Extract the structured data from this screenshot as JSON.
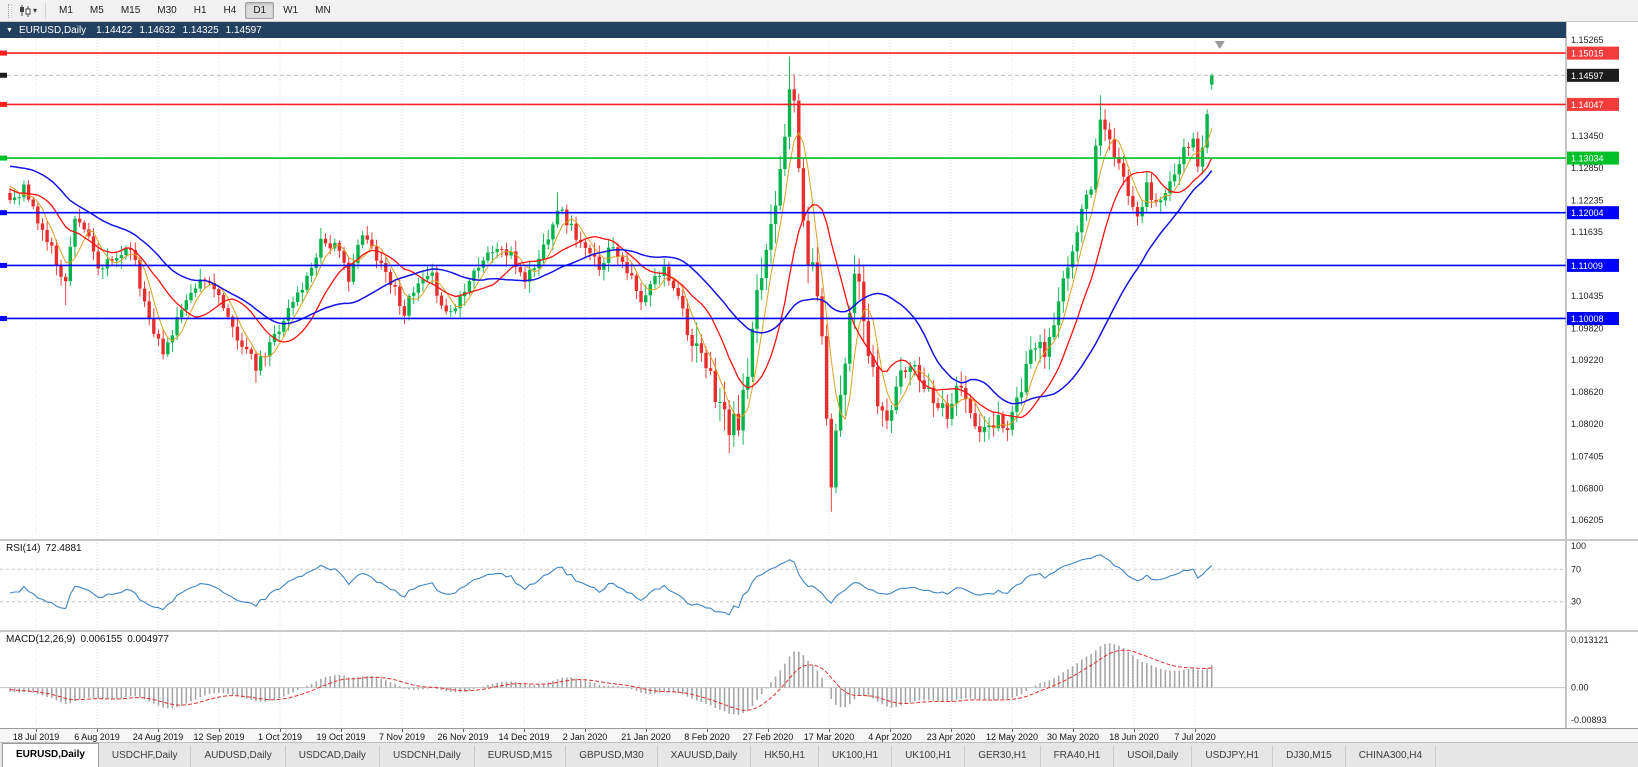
{
  "toolbar": {
    "chart_menu_icon": "candlestick-chart",
    "dropdown_caret": "▾",
    "timeframes": [
      {
        "label": "M1"
      },
      {
        "label": "M5"
      },
      {
        "label": "M15"
      },
      {
        "label": "M30"
      },
      {
        "label": "H1"
      },
      {
        "label": "H4"
      },
      {
        "label": "D1",
        "active": true
      },
      {
        "label": "W1"
      },
      {
        "label": "MN"
      }
    ]
  },
  "chart": {
    "title": {
      "collapse_icon": "▼",
      "symbol": "EURUSD,Daily",
      "open": "1.14422",
      "high": "1.14632",
      "low": "1.14325",
      "close": "1.14597"
    },
    "price_axis": {
      "plain_labels": [
        "1.15265",
        "1.13450",
        "1.12850",
        "1.12235",
        "1.11635",
        "1.10435",
        "1.09820",
        "1.09220",
        "1.08620",
        "1.08020",
        "1.07405",
        "1.06800",
        "1.06205"
      ],
      "tags": [
        {
          "value": "1.15015",
          "color": "#f23b3b",
          "type": "line"
        },
        {
          "value": "1.14597",
          "color": "#1c1c1c",
          "type": "current-price"
        },
        {
          "value": "1.14047",
          "color": "#f23b3b",
          "type": "line"
        },
        {
          "value": "1.13034",
          "color": "#00c02a",
          "type": "line"
        },
        {
          "value": "1.12004",
          "color": "#0000ff",
          "type": "line"
        },
        {
          "value": "1.11009",
          "color": "#0000ff",
          "type": "line"
        },
        {
          "value": "1.10008",
          "color": "#0000ff",
          "type": "line"
        }
      ]
    }
  },
  "colors": {
    "bull": "#00b34a",
    "bear": "#e62e2e",
    "title_bar": "#22405f",
    "grid": "#dcdcdc",
    "rsi_line": "#3f85c6",
    "macd_hist": "#a6a6a6",
    "macd_signal": "#e03030"
  },
  "rsi": {
    "name": "RSI(14)",
    "value": "72.4881",
    "axis_labels": [
      "100",
      "70",
      "30"
    ],
    "levels": [
      70,
      30
    ]
  },
  "macd": {
    "name": "MACD(12,26,9)",
    "main_value": "0.006155",
    "signal_value": "0.004977",
    "axis_labels": [
      {
        "text": "0.013121",
        "v": 0.013121
      },
      {
        "text": "0.00",
        "v": 0
      },
      {
        "text": "-0.00893",
        "v": -0.00893
      }
    ]
  },
  "tabs": [
    {
      "label": "EURUSD,Daily",
      "active": true
    },
    {
      "label": "USDCHF,Daily"
    },
    {
      "label": "AUDUSD,Daily"
    },
    {
      "label": "USDCAD,Daily"
    },
    {
      "label": "USDCNH,Daily"
    },
    {
      "label": "EURUSD,M15"
    },
    {
      "label": "GBPUSD,M30"
    },
    {
      "label": "XAUUSD,Daily"
    },
    {
      "label": "HK50,H1"
    },
    {
      "label": "UK100,H1"
    },
    {
      "label": "UK100,H1"
    },
    {
      "label": "GER30,H1"
    },
    {
      "label": "FRA40,H1"
    },
    {
      "label": "USOil,Daily"
    },
    {
      "label": "USDJPY,H1"
    },
    {
      "label": "DJ30,M15"
    },
    {
      "label": "CHINA300,H4"
    }
  ],
  "chart_data": {
    "type": "candlestick",
    "symbol": "EURUSD",
    "timeframe": "Daily",
    "ohlc_current": {
      "open": 1.14422,
      "high": 1.14632,
      "low": 1.14325,
      "close": 1.14597
    },
    "current_price": 1.14597,
    "bar_count": 260,
    "seed": 11,
    "y_axis": {
      "visible_min": 1.061,
      "visible_max": 1.153
    },
    "x_tick_labels": [
      "18 Jul 2019",
      "6 Aug 2019",
      "24 Aug 2019",
      "12 Sep 2019",
      "1 Oct 2019",
      "19 Oct 2019",
      "7 Nov 2019",
      "26 Nov 2019",
      "14 Dec 2019",
      "2 Jan 2020",
      "21 Jan 2020",
      "8 Feb 2020",
      "27 Feb 2020",
      "17 Mar 2020",
      "4 Apr 2020",
      "23 Apr 2020",
      "12 May 2020",
      "30 May 2020",
      "18 Jun 2020",
      "7 Jul 2020"
    ],
    "horizontal_lines": [
      {
        "price": 1.15015,
        "color": "#ff2020"
      },
      {
        "price": 1.14047,
        "color": "#ff2020"
      },
      {
        "price": 1.13034,
        "color": "#00c02a"
      },
      {
        "price": 1.12004,
        "color": "#0000ff"
      },
      {
        "price": 1.11009,
        "color": "#0000ff"
      },
      {
        "price": 1.10008,
        "color": "#0000ff"
      }
    ],
    "moving_averages": [
      {
        "period": 5,
        "color": "#dba022",
        "width": 1
      },
      {
        "period": 13,
        "color": "#ff1111",
        "width": 1.3
      },
      {
        "period": 30,
        "color": "#1414e6",
        "width": 1.5
      }
    ],
    "prehistory_anchors": [
      [
        -60,
        1.116
      ],
      [
        -50,
        1.1185
      ],
      [
        -40,
        1.122
      ],
      [
        -30,
        1.1255
      ],
      [
        -22,
        1.131
      ],
      [
        -17,
        1.1395
      ],
      [
        -12,
        1.1285
      ],
      [
        -7,
        1.121
      ],
      [
        -3,
        1.1268
      ],
      [
        0,
        1.1225
      ]
    ],
    "close_anchors": [
      [
        0,
        1.1225
      ],
      [
        3,
        1.1248
      ],
      [
        6,
        1.1185
      ],
      [
        9,
        1.113
      ],
      [
        12,
        1.1068
      ],
      [
        14,
        1.1198
      ],
      [
        16,
        1.1172
      ],
      [
        19,
        1.1092
      ],
      [
        22,
        1.1108
      ],
      [
        26,
        1.1142
      ],
      [
        28,
        1.1062
      ],
      [
        31,
        1.0982
      ],
      [
        33,
        1.0932
      ],
      [
        36,
        1.1002
      ],
      [
        39,
        1.1038
      ],
      [
        41,
        1.1072
      ],
      [
        44,
        1.1066
      ],
      [
        47,
        1.0992
      ],
      [
        50,
        1.0956
      ],
      [
        53,
        1.0906
      ],
      [
        55,
        1.0932
      ],
      [
        58,
        1.0986
      ],
      [
        61,
        1.1032
      ],
      [
        64,
        1.1076
      ],
      [
        67,
        1.115
      ],
      [
        70,
        1.1136
      ],
      [
        73,
        1.1082
      ],
      [
        76,
        1.1156
      ],
      [
        79,
        1.1122
      ],
      [
        82,
        1.1072
      ],
      [
        85,
        1.1016
      ],
      [
        88,
        1.1062
      ],
      [
        91,
        1.1076
      ],
      [
        94,
        1.1012
      ],
      [
        96,
        1.1022
      ],
      [
        99,
        1.1082
      ],
      [
        102,
        1.1112
      ],
      [
        105,
        1.1136
      ],
      [
        108,
        1.1116
      ],
      [
        111,
        1.1076
      ],
      [
        114,
        1.1112
      ],
      [
        118,
        1.1212
      ],
      [
        121,
        1.1172
      ],
      [
        124,
        1.1126
      ],
      [
        127,
        1.1102
      ],
      [
        130,
        1.1142
      ],
      [
        133,
        1.1096
      ],
      [
        136,
        1.1026
      ],
      [
        139,
        1.1076
      ],
      [
        141,
        1.1092
      ],
      [
        144,
        1.1052
      ],
      [
        147,
        1.0946
      ],
      [
        150,
        1.0906
      ],
      [
        153,
        1.0842
      ],
      [
        155,
        1.0792
      ],
      [
        157,
        1.0806
      ],
      [
        159,
        1.0892
      ],
      [
        161,
        1.1032
      ],
      [
        163,
        1.1132
      ],
      [
        165,
        1.1232
      ],
      [
        167,
        1.1362
      ],
      [
        168,
        1.1452
      ],
      [
        169,
        1.1392
      ],
      [
        170,
        1.1282
      ],
      [
        171,
        1.1182
      ],
      [
        172,
        1.1112
      ],
      [
        174,
        1.1062
      ],
      [
        175,
        1.0952
      ],
      [
        176,
        1.0822
      ],
      [
        177,
        1.0702
      ],
      [
        178,
        1.0792
      ],
      [
        180,
        1.0932
      ],
      [
        182,
        1.1102
      ],
      [
        183,
        1.1052
      ],
      [
        185,
        1.0932
      ],
      [
        187,
        1.0842
      ],
      [
        189,
        1.0806
      ],
      [
        191,
        1.0872
      ],
      [
        193,
        1.0906
      ],
      [
        195,
        1.0916
      ],
      [
        197,
        1.0876
      ],
      [
        199,
        1.0856
      ],
      [
        202,
        1.0822
      ],
      [
        204,
        1.0876
      ],
      [
        206,
        1.0846
      ],
      [
        208,
        1.0792
      ],
      [
        211,
        1.0786
      ],
      [
        213,
        1.0812
      ],
      [
        215,
        1.0802
      ],
      [
        217,
        1.0846
      ],
      [
        219,
        1.0902
      ],
      [
        221,
        1.0956
      ],
      [
        223,
        1.0932
      ],
      [
        225,
        1.0986
      ],
      [
        227,
        1.1062
      ],
      [
        229,
        1.1136
      ],
      [
        231,
        1.1202
      ],
      [
        233,
        1.1256
      ],
      [
        235,
        1.1386
      ],
      [
        237,
        1.1332
      ],
      [
        239,
        1.1282
      ],
      [
        241,
        1.1242
      ],
      [
        243,
        1.1202
      ],
      [
        245,
        1.1246
      ],
      [
        247,
        1.1216
      ],
      [
        249,
        1.1242
      ],
      [
        251,
        1.1266
      ],
      [
        253,
        1.1312
      ],
      [
        255,
        1.1332
      ],
      [
        256,
        1.1286
      ],
      [
        257,
        1.1326
      ],
      [
        258,
        1.1392
      ],
      [
        259,
        1.14597
      ]
    ],
    "forced_extremes": [
      {
        "i": 12,
        "low": 1.1026
      },
      {
        "i": 53,
        "low": 1.0879
      },
      {
        "i": 118,
        "high": 1.1239
      },
      {
        "i": 155,
        "low": 1.0778
      },
      {
        "i": 168,
        "high": 1.1495
      },
      {
        "i": 169,
        "high": 1.1462
      },
      {
        "i": 177,
        "low": 1.0636
      },
      {
        "i": 178,
        "low": 1.0685
      },
      {
        "i": 235,
        "high": 1.1422
      }
    ],
    "indicators": [
      {
        "name": "RSI",
        "params": [
          14
        ],
        "current": 72.4881,
        "levels": [
          30,
          70
        ],
        "range": [
          0,
          100
        ],
        "scale_labels": [
          "100",
          "70",
          "30"
        ]
      },
      {
        "name": "MACD",
        "params": [
          12,
          26,
          9
        ],
        "main": 0.006155,
        "signal": 0.004977,
        "range": [
          -0.00893,
          0.013121
        ],
        "scale_labels": [
          "0.013121",
          "0.00",
          "-0.00893"
        ]
      }
    ]
  }
}
